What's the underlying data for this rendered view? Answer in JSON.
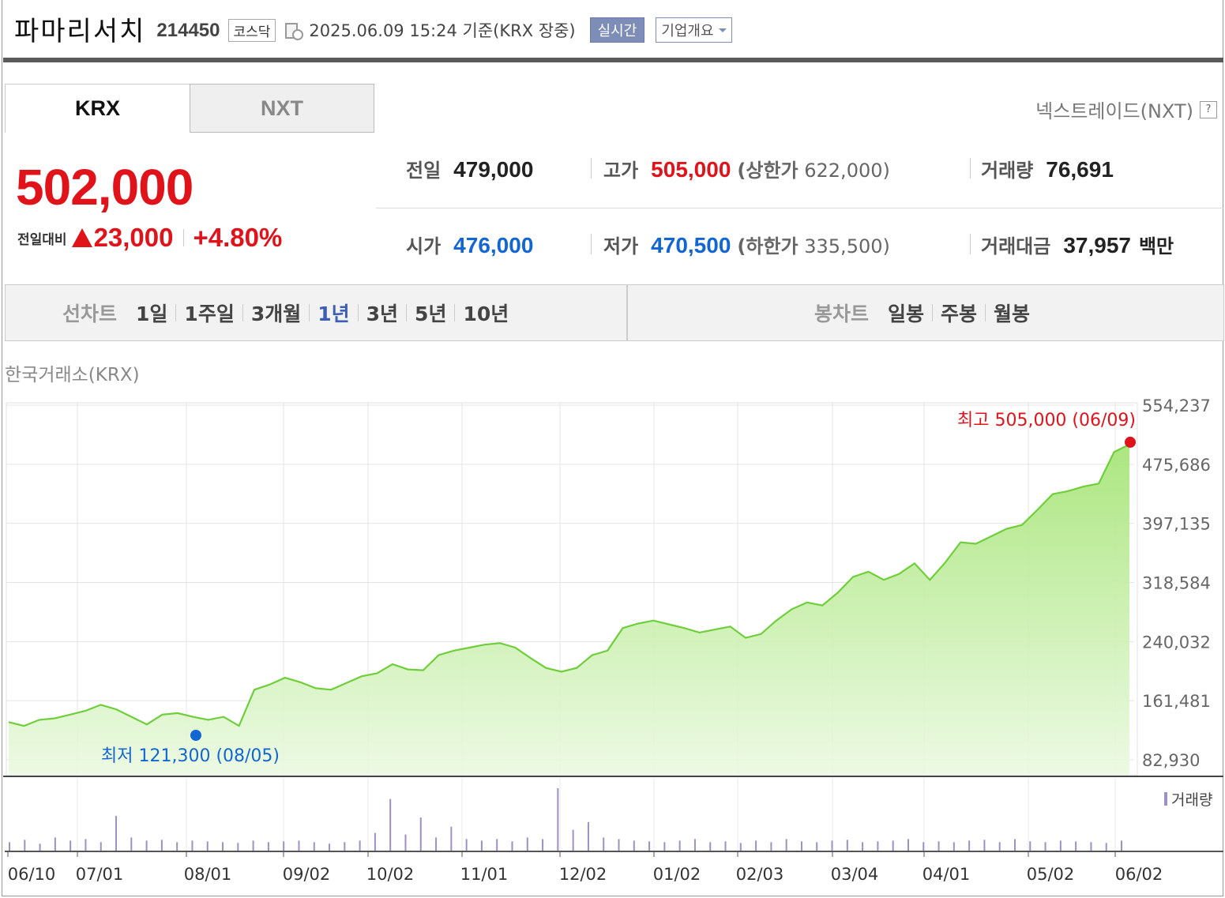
{
  "header": {
    "company": "파마리서치",
    "code": "214450",
    "market": "코스닥",
    "datetime": "2025.06.09 15:24 기준(KRX 장중)",
    "realtime_label": "실시간",
    "overview_label": "기업개요"
  },
  "tabs": [
    "KRX",
    "NXT"
  ],
  "nxt_link": "넥스트레이드(NXT)",
  "price": {
    "current": "502,000",
    "change_label": "전일대비",
    "change": "23,000",
    "change_pct": "+4.80%"
  },
  "stats": {
    "prev_label": "전일",
    "prev": "479,000",
    "high_label": "고가",
    "high": "505,000",
    "upper_label": "(상한가",
    "upper": "622,000)",
    "volume_label": "거래량",
    "volume": "76,691",
    "open_label": "시가",
    "open": "476,000",
    "low_label": "저가",
    "low": "470,500",
    "lower_label": "(하한가",
    "lower": "335,500)",
    "amount_label": "거래대금",
    "amount": "37,957",
    "amount_unit": "백만"
  },
  "periods": {
    "line_label": "선차트",
    "line_items": [
      "1일",
      "1주일",
      "3개월",
      "1년",
      "3년",
      "5년",
      "10년"
    ],
    "active": "1년",
    "candle_label": "봉차트",
    "candle_items": [
      "일봉",
      "주봉",
      "월봉"
    ]
  },
  "exchange_label": "한국거래소(KRX)",
  "colors": {
    "up": "#e0121a",
    "down": "#1266d4",
    "line": "#6fcf3a",
    "volume": "#9e8fc4"
  },
  "chart_data": {
    "type": "area",
    "x_ticks": [
      "06/10",
      "07/01",
      "08/01",
      "09/02",
      "10/02",
      "11/01",
      "12/02",
      "01/02",
      "02/03",
      "03/04",
      "04/01",
      "05/02",
      "06/02"
    ],
    "y_ticks": [
      "554,237",
      "475,686",
      "397,135",
      "318,584",
      "240,032",
      "161,481",
      "82,930"
    ],
    "ylim": [
      82930,
      554237
    ],
    "series": [
      {
        "values": [
          133000,
          128000,
          136000,
          138000,
          143000,
          148000,
          156000,
          150000,
          140000,
          130000,
          143000,
          145000,
          140000,
          136000,
          140000,
          128000,
          176000,
          183000,
          192000,
          186000,
          178000,
          176000,
          185000,
          194000,
          198000,
          210000,
          203000,
          202000,
          222000,
          228000,
          232000,
          236000,
          238000,
          232000,
          218000,
          205000,
          200000,
          205000,
          222000,
          228000,
          258000,
          264000,
          268000,
          263000,
          258000,
          252000,
          256000,
          260000,
          245000,
          250000,
          268000,
          283000,
          292000,
          288000,
          305000,
          326000,
          333000,
          322000,
          330000,
          344000,
          322000,
          345000,
          372000,
          370000,
          380000,
          390000,
          395000,
          415000,
          436000,
          440000,
          446000,
          450000,
          492000,
          502000
        ]
      }
    ],
    "high_annotation": "최고 505,000 (06/09)",
    "low_annotation": "최저 121,300 (08/05)",
    "volume_label": "거래량",
    "volume": [
      12,
      15,
      10,
      18,
      14,
      16,
      12,
      46,
      18,
      14,
      15,
      12,
      14,
      13,
      12,
      11,
      14,
      12,
      13,
      14,
      12,
      10,
      12,
      14,
      24,
      68,
      22,
      44,
      18,
      32,
      16,
      14,
      16,
      13,
      18,
      16,
      82,
      28,
      38,
      18,
      16,
      14,
      13,
      12,
      14,
      16,
      12,
      13,
      11,
      14,
      12,
      16,
      13,
      12,
      14,
      15,
      12,
      13,
      14,
      16,
      12,
      13,
      12,
      14,
      15,
      12,
      16,
      13,
      12,
      14,
      13,
      12,
      11,
      14
    ]
  }
}
